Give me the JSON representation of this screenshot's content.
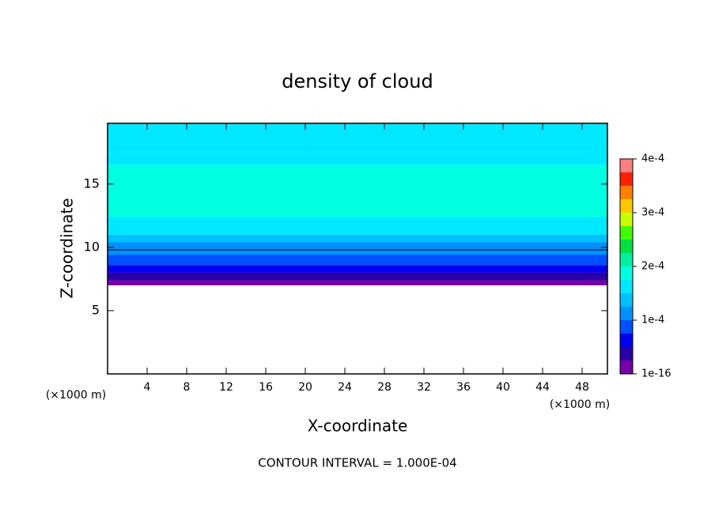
{
  "chart_data": {
    "type": "contour",
    "title": "density of cloud",
    "x_label": "X-coordinate",
    "y_label": "Z-coordinate",
    "x_unit": "(×1000 m)",
    "y_unit": "(×1000 m)",
    "footer": "CONTOUR INTERVAL = 1.000E-04",
    "xlim": [
      0,
      50.56
    ],
    "xticks": [
      4,
      8,
      12,
      16,
      20,
      24,
      28,
      32,
      36,
      40,
      44,
      48
    ],
    "ylim": [
      0,
      19.8
    ],
    "yticks": [
      5,
      10,
      15
    ],
    "z_edges": [
      7,
      7.4,
      8,
      8.6,
      9.4,
      10.4,
      11,
      12.4,
      16.5,
      17.5,
      19.8
    ],
    "values": [
      1e-05,
      3.5e-05,
      6e-05,
      8.5e-05,
      0.00011,
      0.000135,
      0.00016,
      0.00018,
      0.00016,
      0.000155
    ],
    "contour_line": {
      "level": 0.0001,
      "z": 9.8
    },
    "colorbar": {
      "lim": [
        0,
        0.0004
      ],
      "ticks": [
        {
          "value": 0,
          "label": "1e-16"
        },
        {
          "value": 0.0001,
          "label": "1e-4"
        },
        {
          "value": 0.0002,
          "label": "2e-4"
        },
        {
          "value": 0.0003,
          "label": "3e-4"
        },
        {
          "value": 0.0004,
          "label": "4e-4"
        }
      ],
      "colors": [
        "#7800a8",
        "#2800a8",
        "#0000f0",
        "#0050ff",
        "#0090ff",
        "#00c0ff",
        "#00e8ff",
        "#00ffe0",
        "#00f0a0",
        "#00e040",
        "#40ff00",
        "#c8ff00",
        "#ffc800",
        "#ff8000",
        "#ff2000",
        "#ff8080"
      ]
    }
  }
}
